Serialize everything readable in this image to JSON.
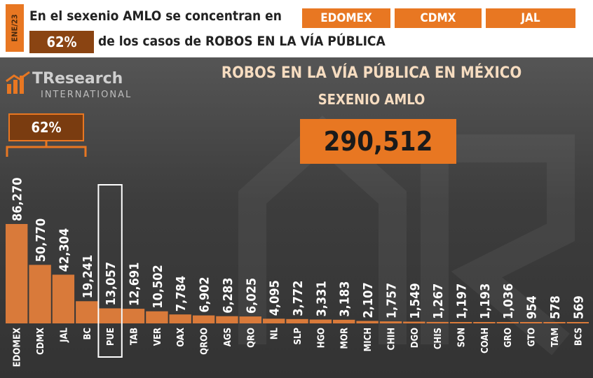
{
  "header": {
    "date_tag": "ENE/23",
    "line1_prefix": "En el sexenio AMLO se concentran en",
    "states": [
      "EDOMEX",
      "CDMX",
      "JAL"
    ],
    "percentage": "62%",
    "line2_text": "de los casos de ROBOS EN LA VÍA PÚBLICA"
  },
  "logo": {
    "name": "TResearch",
    "subtitle": "INTERNATIONAL"
  },
  "colors": {
    "accent": "#e87722",
    "dark_accent": "#8a4412",
    "panel_bg": "#3d3d3d",
    "bar_fill": "#d97a3a",
    "highlight_outline": "#ffffff"
  },
  "highlighted_category": "PUE",
  "share_callout": "62%",
  "total": "290,512",
  "chart_data": {
    "type": "bar",
    "title": "ROBOS EN LA VÍA PÚBLICA EN MÉXICO",
    "subtitle": "SEXENIO AMLO",
    "categories": [
      "EDOMEX",
      "CDMX",
      "JAL",
      "BC",
      "PUE",
      "TAB",
      "VER",
      "OAX",
      "QROO",
      "AGS",
      "QRO",
      "NL",
      "SLP",
      "HGO",
      "MOR",
      "MICH",
      "CHIH",
      "DGO",
      "CHIS",
      "SON",
      "COAH",
      "GRO",
      "GTO",
      "TAM",
      "BCS"
    ],
    "values": [
      86270,
      50770,
      42304,
      19241,
      13057,
      12691,
      10502,
      7784,
      6902,
      6283,
      6025,
      4095,
      3772,
      3331,
      3183,
      2107,
      1757,
      1549,
      1267,
      1197,
      1193,
      1036,
      954,
      578,
      569
    ],
    "value_labels": [
      "86,270",
      "50,770",
      "42,304",
      "19,241",
      "13,057",
      "12,691",
      "10,502",
      "7,784",
      "6,902",
      "6,283",
      "6,025",
      "4,095",
      "3,772",
      "3,331",
      "3,183",
      "2,107",
      "1,757",
      "1,549",
      "1,267",
      "1,197",
      "1,193",
      "1,036",
      "954",
      "578",
      "569"
    ],
    "xlabel": "",
    "ylabel": "",
    "ylim": [
      0,
      90000
    ],
    "grid": false,
    "legend": "none"
  }
}
